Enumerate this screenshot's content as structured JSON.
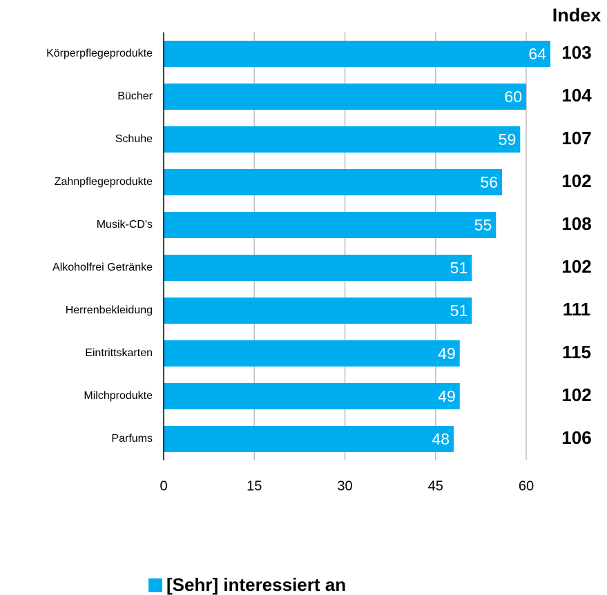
{
  "chart_data": {
    "type": "bar",
    "orientation": "horizontal",
    "categories": [
      "Körperpflegeprodukte",
      "Bücher",
      "Schuhe",
      "Zahnpflegeprodukte",
      "Musik-CD's",
      "Alkoholfrei Getränke",
      "Herrenbekleidung",
      "Eintrittskarten",
      "Milchprodukte",
      "Parfums"
    ],
    "series": [
      {
        "name": "[Sehr] interessiert an",
        "color": "#00adef",
        "values": [
          64,
          60,
          59,
          56,
          55,
          51,
          51,
          49,
          49,
          48
        ]
      }
    ],
    "xlim": [
      0,
      64
    ],
    "xticks": [
      0,
      15,
      30,
      45,
      60
    ],
    "grid": true,
    "index": {
      "title": "Index",
      "values": [
        103,
        104,
        107,
        102,
        108,
        102,
        111,
        115,
        102,
        106
      ]
    }
  }
}
